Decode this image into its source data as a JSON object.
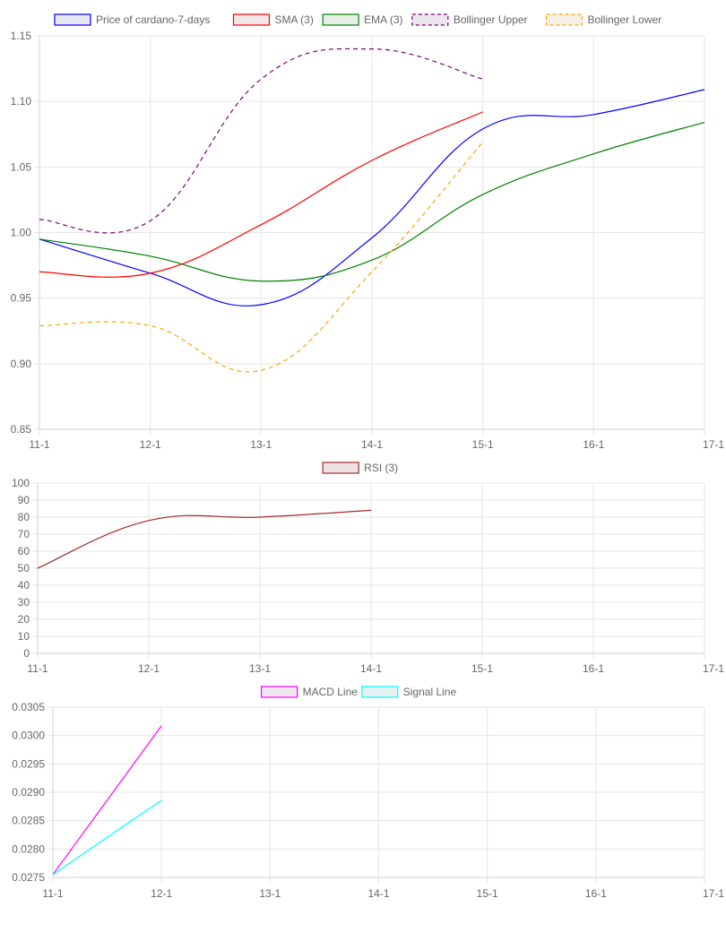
{
  "chart_data": [
    {
      "type": "line",
      "x": [
        "11-1",
        "12-1",
        "13-1",
        "14-1",
        "15-1",
        "16-1",
        "17-1"
      ],
      "ylim": [
        0.85,
        1.15
      ],
      "yticks": [
        "0.85",
        "0.90",
        "0.95",
        "1.00",
        "1.05",
        "1.10",
        "1.15"
      ],
      "grid": true,
      "legend_position": "top",
      "series": [
        {
          "name": "Price of cardano-7-days",
          "color": "#0000ff",
          "fill": "#e6e6f5",
          "dashed": false,
          "values": [
            0.995,
            0.969,
            0.945,
            0.996,
            1.079,
            1.09,
            1.109
          ]
        },
        {
          "name": "SMA (3)",
          "color": "#ff0000",
          "fill": "#f2e6e6",
          "dashed": false,
          "values": [
            0.97,
            0.969,
            1.006,
            1.055,
            1.092,
            null,
            null
          ]
        },
        {
          "name": "EMA (3)",
          "color": "#008000",
          "fill": "#e6efe6",
          "dashed": false,
          "values": [
            0.995,
            0.982,
            0.963,
            0.979,
            1.029,
            1.06,
            1.084
          ]
        },
        {
          "name": "Bollinger Upper",
          "color": "#800080",
          "fill": "#ece6ec",
          "dashed": true,
          "values": [
            1.01,
            1.009,
            1.117,
            1.14,
            1.117,
            null,
            null
          ]
        },
        {
          "name": "Bollinger Lower",
          "color": "#ffa500",
          "fill": "#f5efe6",
          "dashed": true,
          "values": [
            0.929,
            0.929,
            0.895,
            0.97,
            1.069,
            null,
            null
          ]
        }
      ]
    },
    {
      "type": "line",
      "x": [
        "11-1",
        "12-1",
        "13-1",
        "14-1",
        "15-1",
        "16-1",
        "17-1"
      ],
      "ylim": [
        0,
        100
      ],
      "yticks": [
        "0",
        "10",
        "20",
        "30",
        "40",
        "50",
        "60",
        "70",
        "80",
        "90",
        "100"
      ],
      "grid": true,
      "legend_position": "top",
      "series": [
        {
          "name": "RSI (3)",
          "color": "#a52a2a",
          "fill": "#ebe3e3",
          "dashed": false,
          "values": [
            50,
            78,
            80,
            84,
            null,
            null,
            null
          ]
        }
      ]
    },
    {
      "type": "line",
      "x": [
        "11-1",
        "12-1",
        "13-1",
        "14-1",
        "15-1",
        "16-1",
        "17-1"
      ],
      "ylim": [
        0.0275,
        0.0305
      ],
      "yticks": [
        "0.0275",
        "0.0280",
        "0.0285",
        "0.0290",
        "0.0295",
        "0.0300",
        "0.0305"
      ],
      "grid": true,
      "legend_position": "top",
      "series": [
        {
          "name": "MACD Line",
          "color": "#ff00ff",
          "fill": "#f0e6f0",
          "dashed": false,
          "values": [
            0.02755,
            0.03017,
            null,
            null,
            null,
            null,
            null
          ]
        },
        {
          "name": "Signal Line",
          "color": "#00ffff",
          "fill": "#e6f0f0",
          "dashed": false,
          "values": [
            0.02755,
            0.02886,
            null,
            null,
            null,
            null,
            null
          ]
        }
      ]
    }
  ]
}
